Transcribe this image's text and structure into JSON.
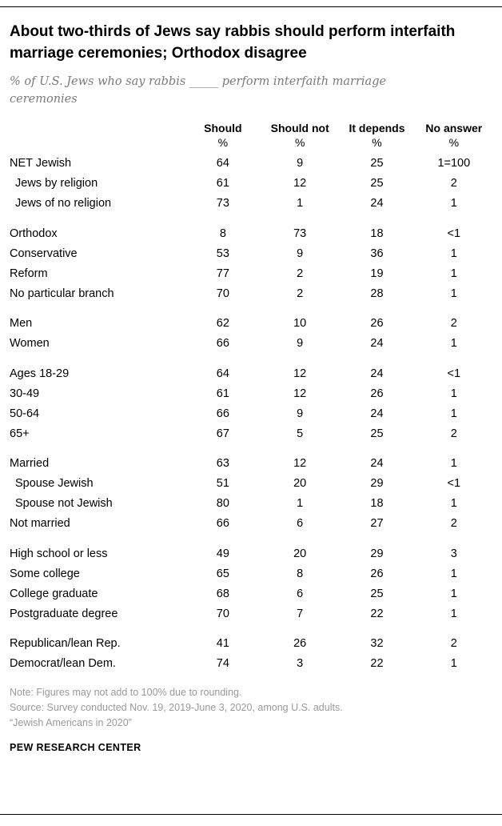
{
  "chart_data": {
    "type": "table",
    "title": "About two-thirds of Jews say rabbis should perform interfaith marriage ceremonies; Orthodox disagree",
    "subtitle": "% of U.S. Jews who say rabbis _____ perform interfaith marriage ceremonies",
    "columns": [
      "Should",
      "Should not",
      "It depends",
      "No answer"
    ],
    "unit": "%",
    "groups": [
      {
        "rows": [
          {
            "label": "NET Jewish",
            "indent": false,
            "values": [
              "64",
              "9",
              "25",
              "1=100"
            ]
          },
          {
            "label": "Jews by religion",
            "indent": true,
            "values": [
              "61",
              "12",
              "25",
              "2"
            ]
          },
          {
            "label": "Jews of no religion",
            "indent": true,
            "values": [
              "73",
              "1",
              "24",
              "1"
            ]
          }
        ]
      },
      {
        "rows": [
          {
            "label": "Orthodox",
            "indent": false,
            "values": [
              "8",
              "73",
              "18",
              "<1"
            ]
          },
          {
            "label": "Conservative",
            "indent": false,
            "values": [
              "53",
              "9",
              "36",
              "1"
            ]
          },
          {
            "label": "Reform",
            "indent": false,
            "values": [
              "77",
              "2",
              "19",
              "1"
            ]
          },
          {
            "label": "No particular branch",
            "indent": false,
            "values": [
              "70",
              "2",
              "28",
              "1"
            ]
          }
        ]
      },
      {
        "rows": [
          {
            "label": "Men",
            "indent": false,
            "values": [
              "62",
              "10",
              "26",
              "2"
            ]
          },
          {
            "label": "Women",
            "indent": false,
            "values": [
              "66",
              "9",
              "24",
              "1"
            ]
          }
        ]
      },
      {
        "rows": [
          {
            "label": "Ages 18-29",
            "indent": false,
            "values": [
              "64",
              "12",
              "24",
              "<1"
            ]
          },
          {
            "label": "30-49",
            "indent": false,
            "values": [
              "61",
              "12",
              "26",
              "1"
            ]
          },
          {
            "label": "50-64",
            "indent": false,
            "values": [
              "66",
              "9",
              "24",
              "1"
            ]
          },
          {
            "label": "65+",
            "indent": false,
            "values": [
              "67",
              "5",
              "25",
              "2"
            ]
          }
        ]
      },
      {
        "rows": [
          {
            "label": "Married",
            "indent": false,
            "values": [
              "63",
              "12",
              "24",
              "1"
            ]
          },
          {
            "label": "Spouse Jewish",
            "indent": true,
            "values": [
              "51",
              "20",
              "29",
              "<1"
            ]
          },
          {
            "label": "Spouse not Jewish",
            "indent": true,
            "values": [
              "80",
              "1",
              "18",
              "1"
            ]
          },
          {
            "label": "Not married",
            "indent": false,
            "values": [
              "66",
              "6",
              "27",
              "2"
            ]
          }
        ]
      },
      {
        "rows": [
          {
            "label": "High school or less",
            "indent": false,
            "values": [
              "49",
              "20",
              "29",
              "3"
            ]
          },
          {
            "label": "Some college",
            "indent": false,
            "values": [
              "65",
              "8",
              "26",
              "1"
            ]
          },
          {
            "label": "College graduate",
            "indent": false,
            "values": [
              "68",
              "6",
              "25",
              "1"
            ]
          },
          {
            "label": "Postgraduate degree",
            "indent": false,
            "values": [
              "70",
              "7",
              "22",
              "1"
            ]
          }
        ]
      },
      {
        "rows": [
          {
            "label": "Republican/lean Rep.",
            "indent": false,
            "values": [
              "41",
              "26",
              "32",
              "2"
            ]
          },
          {
            "label": "Democrat/lean Dem.",
            "indent": false,
            "values": [
              "74",
              "3",
              "22",
              "1"
            ]
          }
        ]
      }
    ]
  },
  "notes": {
    "note": "Note: Figures may not add to 100% due to rounding.",
    "source": "Source: Survey conducted Nov. 19, 2019-June 3, 2020, among U.S. adults.",
    "report": "“Jewish Americans in 2020”"
  },
  "footer": "PEW RESEARCH CENTER"
}
